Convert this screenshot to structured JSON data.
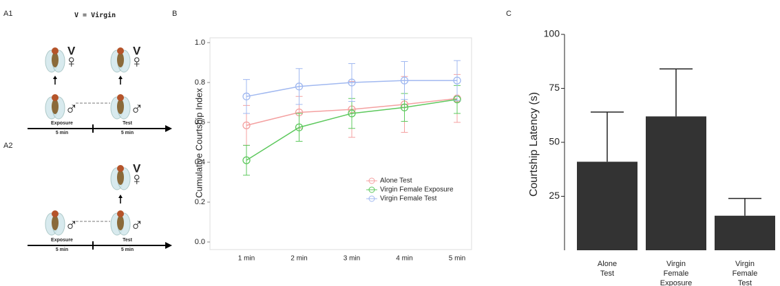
{
  "panels": {
    "a1": "A1",
    "a2": "A2",
    "b": "B",
    "c": "C"
  },
  "diagram": {
    "note": "V = Virgin",
    "symbols": {
      "virgin": "V",
      "female": "♀",
      "male": "♂"
    },
    "a1": {
      "labels": [
        {
          "name": "Exposure",
          "time": "5 min"
        },
        {
          "name": "Test",
          "time": "5 min"
        }
      ]
    },
    "a2": {
      "labels": [
        {
          "name": "Exposure",
          "time": "5 min"
        },
        {
          "name": "Test",
          "time": "5 min"
        }
      ]
    }
  },
  "chart_data": [
    {
      "type": "line",
      "y_label": "Cumulative Courtship Index",
      "categories": [
        "1 min",
        "2 min",
        "3 min",
        "4 min",
        "5 min"
      ],
      "ylim": [
        0,
        1
      ],
      "yticks": [
        {
          "value": 0,
          "label": "0.0"
        },
        0.2,
        0.4,
        0.6,
        0.8,
        {
          "value": 1,
          "label": "1.0"
        }
      ],
      "legend": "center-right",
      "series": [
        {
          "name": "Alone Test",
          "color": "#f4a0a0",
          "values": [
            0.585,
            0.65,
            0.665,
            0.69,
            0.72
          ],
          "errors": [
            0.1,
            0.08,
            0.14,
            0.14,
            0.12
          ]
        },
        {
          "name": "Virgin Female Exposure",
          "color": "#5cc85c",
          "values": [
            0.41,
            0.575,
            0.645,
            0.675,
            0.715
          ],
          "errors": [
            0.075,
            0.07,
            0.075,
            0.07,
            0.07
          ]
        },
        {
          "name": "Virgin Female Test",
          "color": "#a0b8f0",
          "values": [
            0.73,
            0.78,
            0.8,
            0.81,
            0.81
          ],
          "errors": [
            0.085,
            0.09,
            0.095,
            0.095,
            0.1
          ]
        }
      ]
    },
    {
      "type": "bar",
      "y_label": "Courtship Latency (s)",
      "categories": [
        "Alone Test",
        "Virgin Female Exposure",
        "Virgin Female Test"
      ],
      "values": [
        41,
        62,
        16
      ],
      "errors": [
        23,
        22,
        8
      ],
      "color": "#333333",
      "ylim": [
        0,
        100
      ],
      "yticks": [
        25,
        50,
        75,
        100
      ]
    }
  ]
}
